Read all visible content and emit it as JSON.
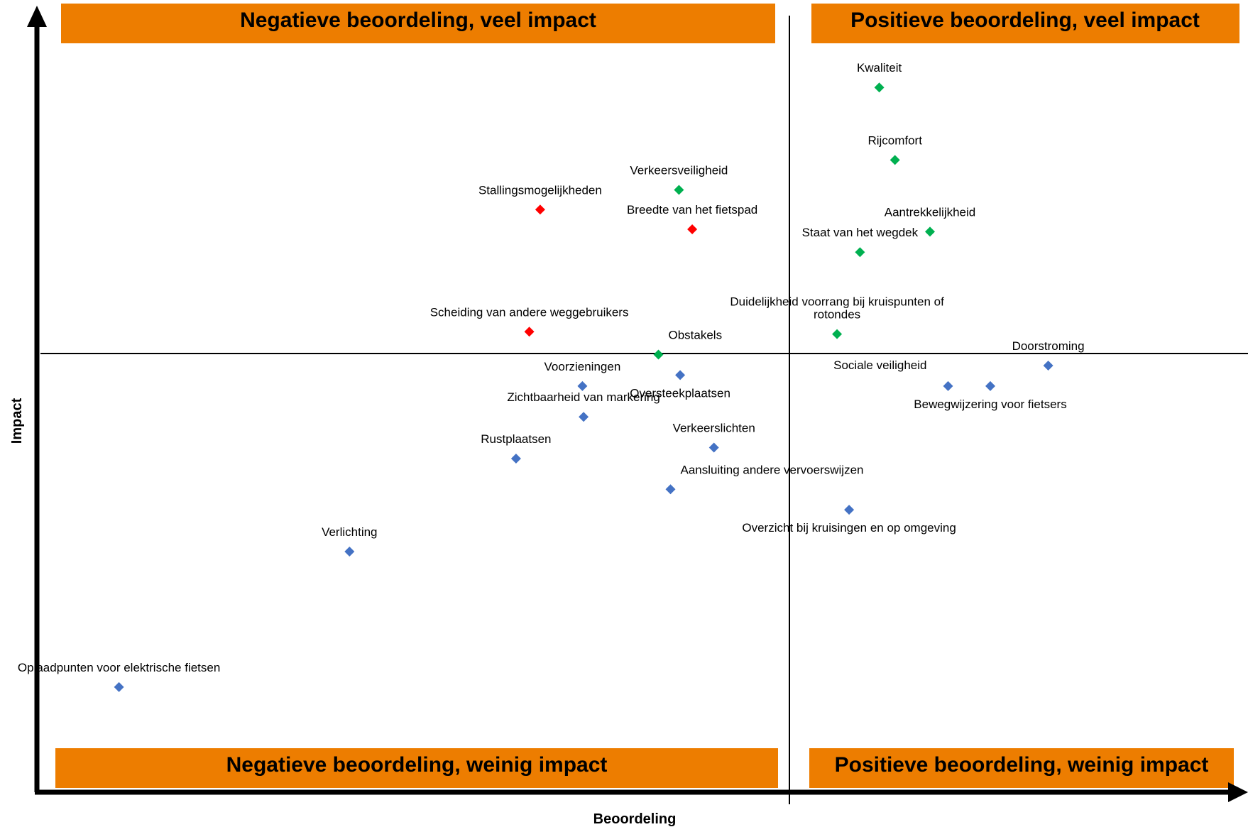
{
  "chart_data": {
    "type": "scatter",
    "title": "",
    "xlabel": "Beoordeling",
    "ylabel": "Impact",
    "grid": false,
    "legend": "none",
    "xlim": [
      0,
      100
    ],
    "ylim": [
      0,
      100
    ],
    "x_divider": 51.5,
    "y_divider": 55.0,
    "colors": {
      "negative_high": "#ff0000",
      "positive_high": "#00b050",
      "low_impact": "#4472c4",
      "quadrant_fill": "#ed7d00",
      "axis": "#000000"
    },
    "quadrants": {
      "top_left": "Negatieve beoordeling, veel impact",
      "top_right": "Positieve beoordeling, veel impact",
      "bottom_left": "Negatieve beoordeling, weinig impact",
      "bottom_right": "Positieve beoordeling, weinig impact"
    },
    "points": [
      {
        "label": "Kwaliteit",
        "x": 69.8,
        "y": 88.9,
        "group": "positive_high",
        "label_pos": "above"
      },
      {
        "label": "Rijcomfort",
        "x": 71.1,
        "y": 79.7,
        "group": "positive_high",
        "label_pos": "above"
      },
      {
        "label": "Verkeersveiligheid",
        "x": 53.2,
        "y": 75.9,
        "group": "positive_high",
        "label_pos": "above"
      },
      {
        "label": "Aantrekkelijkheid",
        "x": 74.0,
        "y": 70.6,
        "group": "positive_high",
        "label_pos": "above"
      },
      {
        "label": "Staat van het wegdek",
        "x": 68.2,
        "y": 68.0,
        "group": "positive_high",
        "label_pos": "above"
      },
      {
        "label": "Duidelijkheid voorrang bij kruispunten of rotondes",
        "x": 66.3,
        "y": 57.6,
        "group": "positive_high",
        "label_pos": "above"
      },
      {
        "label": "Obstakels",
        "x": 51.5,
        "y": 55.0,
        "group": "positive_high",
        "label_pos": "above-right"
      },
      {
        "label": "Stallingsmogelijkheden",
        "x": 41.7,
        "y": 73.4,
        "group": "negative_high",
        "label_pos": "above"
      },
      {
        "label": "Breedte van het fietspad",
        "x": 54.3,
        "y": 70.9,
        "group": "negative_high",
        "label_pos": "above"
      },
      {
        "label": "Scheiding van andere weggebruikers",
        "x": 40.8,
        "y": 57.9,
        "group": "negative_high",
        "label_pos": "above"
      },
      {
        "label": "Doorstroming",
        "x": 83.8,
        "y": 53.6,
        "group": "low_impact",
        "label_pos": "above"
      },
      {
        "label": "Sociale veiligheid",
        "x": 75.5,
        "y": 51.0,
        "group": "low_impact",
        "label_pos": "above-left"
      },
      {
        "label": "Bewegwijzering voor fietsers",
        "x": 79.0,
        "y": 51.0,
        "group": "low_impact",
        "label_pos": "below"
      },
      {
        "label": "Oversteekplaatsen",
        "x": 53.3,
        "y": 52.4,
        "group": "low_impact",
        "label_pos": "below"
      },
      {
        "label": "Verkeerslichten",
        "x": 56.1,
        "y": 43.2,
        "group": "low_impact",
        "label_pos": "above"
      },
      {
        "label": "Aansluiting andere vervoerswijzen",
        "x": 52.5,
        "y": 37.9,
        "group": "low_impact",
        "label_pos": "above-right"
      },
      {
        "label": "Overzicht bij kruisingen en op omgeving",
        "x": 67.3,
        "y": 35.3,
        "group": "low_impact",
        "label_pos": "below"
      },
      {
        "label": "Voorzieningen",
        "x": 45.2,
        "y": 51.0,
        "group": "low_impact",
        "label_pos": "above"
      },
      {
        "label": "Zichtbaarheid van markering",
        "x": 45.3,
        "y": 47.1,
        "group": "low_impact",
        "label_pos": "above"
      },
      {
        "label": "Rustplaatsen",
        "x": 39.7,
        "y": 41.8,
        "group": "low_impact",
        "label_pos": "above"
      },
      {
        "label": "Verlichting",
        "x": 25.9,
        "y": 30.0,
        "group": "low_impact",
        "label_pos": "above"
      },
      {
        "label": "Oplaadpunten voor elektrische fietsen",
        "x": 6.8,
        "y": 12.8,
        "group": "low_impact",
        "label_pos": "above"
      }
    ]
  }
}
